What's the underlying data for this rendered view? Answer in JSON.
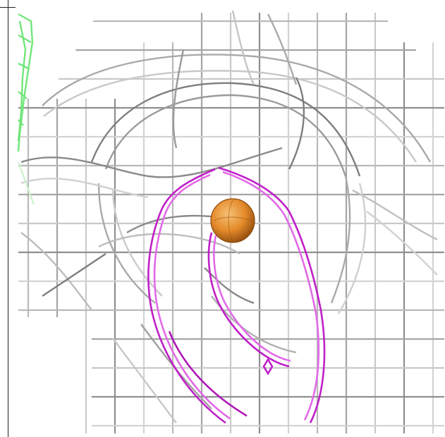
{
  "viewer": {
    "colors": {
      "background": "#ffffff",
      "mesh_gray": "#b9b9b9",
      "mesh_dark": "#7e7e7e",
      "mesh_green": "#72e67a",
      "mesh_magenta": "#c020c8",
      "sphere_orange": "#e48a2a"
    },
    "icons": [
      "mesh-wireframe",
      "sphere-atom"
    ]
  }
}
